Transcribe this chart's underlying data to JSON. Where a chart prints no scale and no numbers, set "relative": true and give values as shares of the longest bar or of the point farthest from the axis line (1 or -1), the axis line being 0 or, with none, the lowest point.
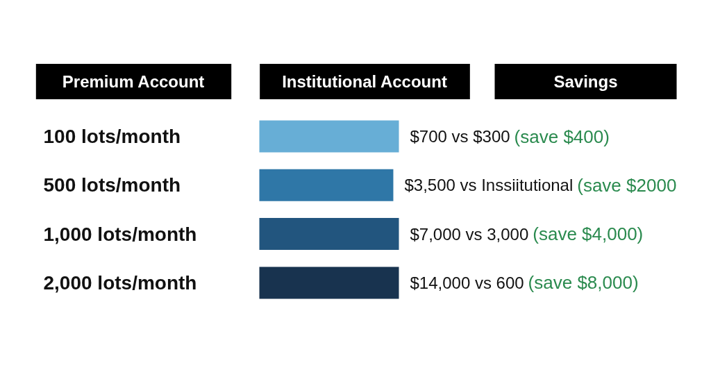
{
  "chart_data": {
    "type": "bar",
    "orientation": "horizontal",
    "relative": true,
    "categories": [
      "100 lots/month",
      "500 lots/month",
      "1,000 lots/month",
      "2,000 lots/month"
    ],
    "values": [
      1,
      0.96,
      1,
      1
    ],
    "colors": [
      "#67aed6",
      "#2f77a7",
      "#22557e",
      "#18334f"
    ],
    "annotations": [
      "Premium Account",
      "Institutional Account",
      "Savings",
      "$700 vs $300",
      "(save $400)",
      "$3,500 vs Inssiitutional",
      "(save $2000",
      "$7,000 vs 3,000",
      "(save $4,000)",
      "$14,000 vs 600",
      "(save $8,000)"
    ]
  }
}
